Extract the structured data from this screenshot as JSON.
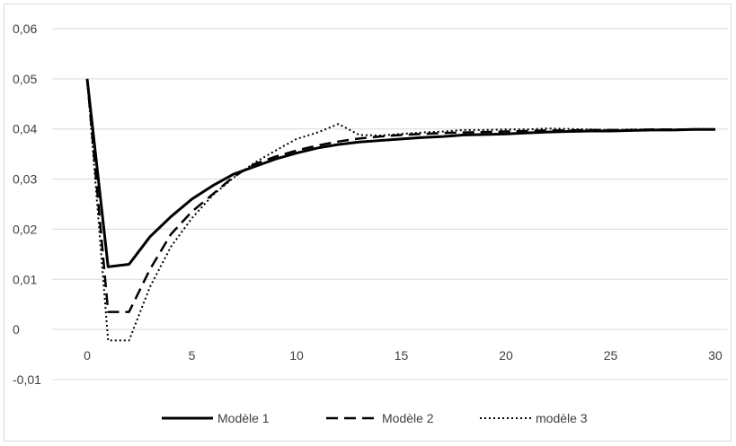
{
  "chart_data": {
    "type": "line",
    "title": "",
    "xlabel": "",
    "ylabel": "",
    "xlim": [
      0,
      30
    ],
    "ylim": [
      -0.01,
      0.06
    ],
    "grid": "horizontal",
    "legend_position": "bottom",
    "x_ticks": [
      "0",
      "5",
      "10",
      "15",
      "20",
      "25",
      "30"
    ],
    "y_ticks": [
      "-0,01",
      "0",
      "0,01",
      "0,02",
      "0,03",
      "0,04",
      "0,05",
      "0,06"
    ],
    "x": [
      0,
      1,
      2,
      3,
      4,
      5,
      6,
      7,
      8,
      9,
      10,
      11,
      12,
      13,
      14,
      15,
      16,
      17,
      18,
      19,
      20,
      21,
      22,
      23,
      24,
      25,
      26,
      27,
      28,
      29,
      30
    ],
    "series": [
      {
        "name": "Modèle 1",
        "style": "solid",
        "color": "#000000",
        "values": [
          0.05,
          0.0125,
          0.013,
          0.0185,
          0.0225,
          0.026,
          0.0287,
          0.031,
          0.0325,
          0.034,
          0.0352,
          0.0362,
          0.0369,
          0.0374,
          0.0377,
          0.038,
          0.0383,
          0.0385,
          0.0388,
          0.0389,
          0.039,
          0.0392,
          0.0394,
          0.0395,
          0.0396,
          0.0396,
          0.0397,
          0.0398,
          0.0398,
          0.0399,
          0.0399
        ]
      },
      {
        "name": "Modèle 2",
        "style": "dashed",
        "color": "#000000",
        "values": [
          0.05,
          0.0035,
          0.0035,
          0.012,
          0.019,
          0.0235,
          0.027,
          0.0305,
          0.033,
          0.0345,
          0.0357,
          0.0367,
          0.0375,
          0.0381,
          0.0385,
          0.0388,
          0.039,
          0.0392,
          0.0393,
          0.0394,
          0.0395,
          0.0396,
          0.0397,
          0.0397,
          0.0398,
          0.0398,
          0.0398,
          0.0399,
          0.0399,
          0.0399,
          0.0399
        ]
      },
      {
        "name": "modèle 3",
        "style": "dotted",
        "color": "#000000",
        "values": [
          0.05,
          -0.0022,
          -0.0022,
          0.0085,
          0.0165,
          0.0222,
          0.0268,
          0.0303,
          0.0333,
          0.0357,
          0.038,
          0.0393,
          0.041,
          0.0388,
          0.0387,
          0.039,
          0.0393,
          0.0395,
          0.0398,
          0.0398,
          0.0399,
          0.0399,
          0.0401,
          0.04,
          0.0399,
          0.0398,
          0.0399,
          0.0399,
          0.0399,
          0.04,
          0.04
        ]
      }
    ]
  }
}
